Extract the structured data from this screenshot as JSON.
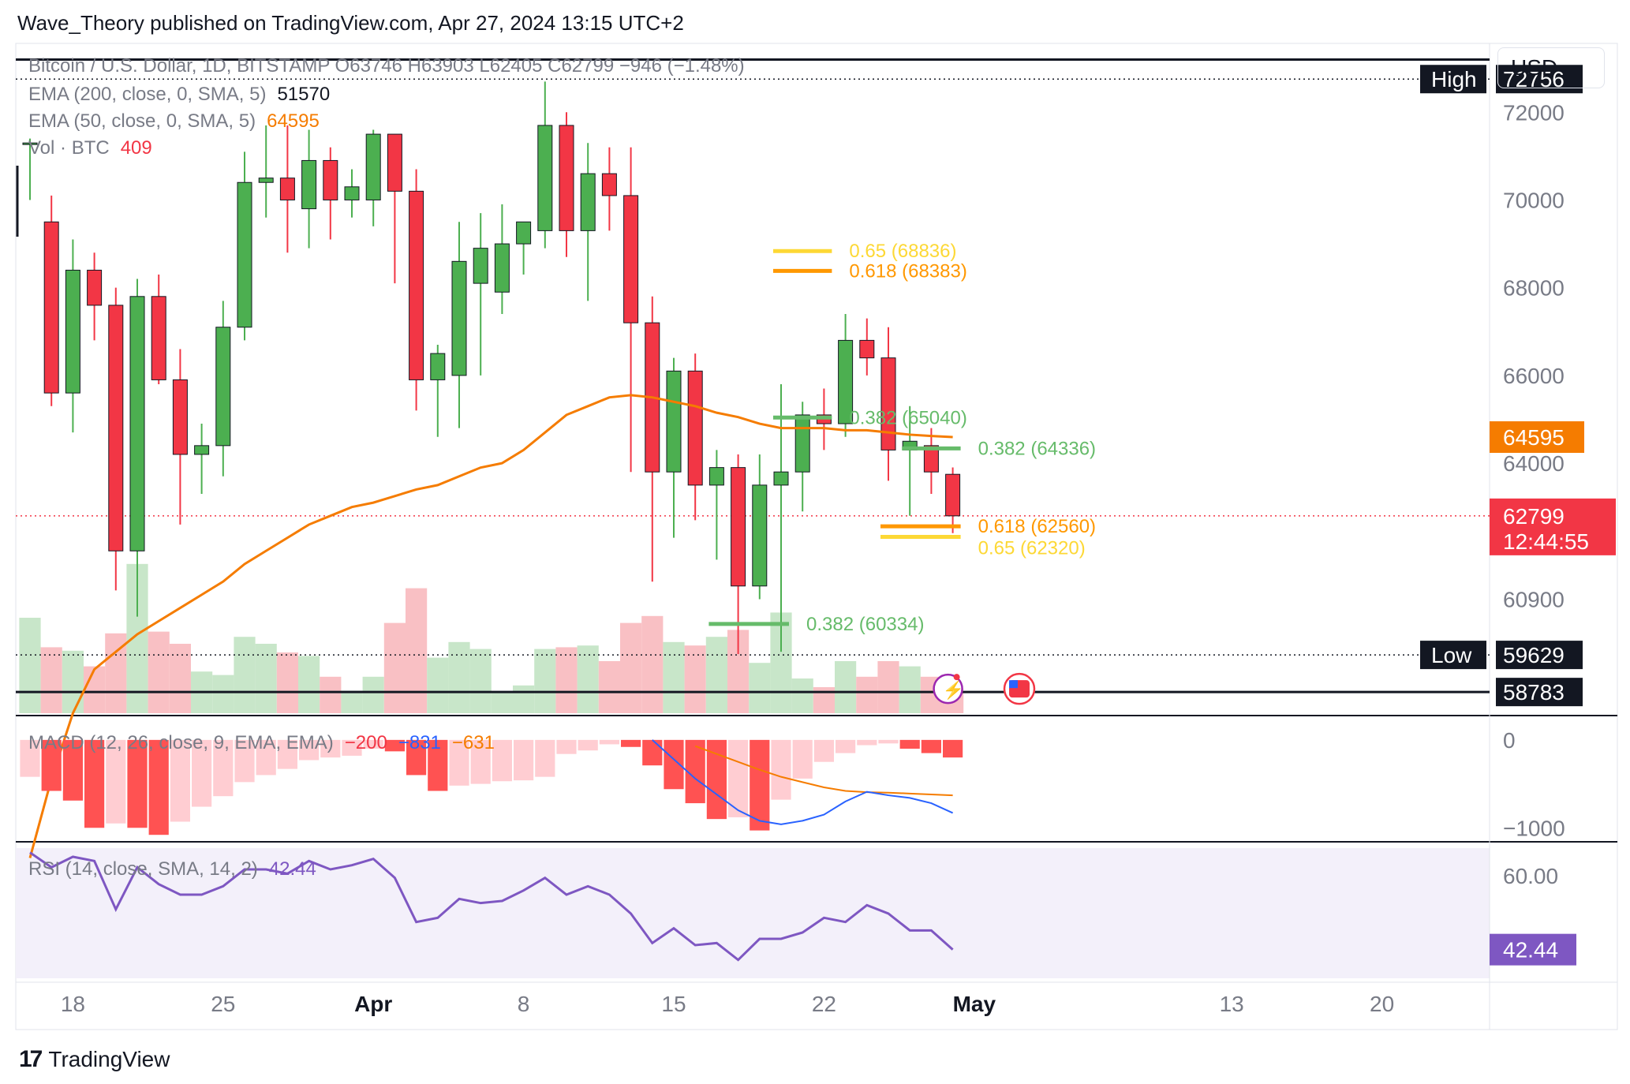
{
  "header": {
    "publish_text": "Wave_Theory published on TradingView.com, Apr 27, 2024 13:15 UTC+2"
  },
  "legend": {
    "symbol_line": "Bitcoin / U.S. Dollar, 1D, BITSTAMP  O63746  H63903  L62405  C62799  −946 (−1.48%)",
    "ema200_label": "EMA (200, close, 0, SMA, 5)",
    "ema200_value": "51570",
    "ema50_label": "EMA (50, close, 0, SMA, 5)",
    "ema50_value": "64595",
    "vol_label": "Vol · BTC",
    "vol_value": "409",
    "macd_label": "MACD (12, 26, close, 9, EMA, EMA)",
    "macd_hist": "−200",
    "macd_line": "−831",
    "macd_signal": "−631",
    "rsi_label": "RSI (14, close, SMA, 14, 2)",
    "rsi_value": "42.44"
  },
  "currency_button": "USD",
  "footer": {
    "brand": "TradingView"
  },
  "colors": {
    "up": "#4caf50",
    "down": "#f23645",
    "ema50": "#f57c00",
    "macd_line": "#2962ff",
    "rsi": "#7e57c2",
    "vol_up": "#c8e6c9",
    "vol_down": "#f9c0c4",
    "fib_yellow": "#fdd835",
    "fib_orange": "#ff9800",
    "fib_green": "#66bb6a"
  },
  "chart_data": {
    "type": "candlestick",
    "y_range": [
      58300,
      73300
    ],
    "y_ticks": [
      {
        "v": 72000,
        "label": "72000"
      },
      {
        "v": 70000,
        "label": "70000"
      },
      {
        "v": 68000,
        "label": "68000"
      },
      {
        "v": 66000,
        "label": "66000"
      },
      {
        "v": 64000,
        "label": "64000"
      },
      {
        "v": 60900,
        "label": "60900"
      }
    ],
    "x_ticks": [
      {
        "i": 2,
        "label": "18"
      },
      {
        "i": 9,
        "label": "25"
      },
      {
        "i": 16,
        "label": "Apr"
      },
      {
        "i": 23,
        "label": "8"
      },
      {
        "i": 30,
        "label": "15"
      },
      {
        "i": 37,
        "label": "22"
      },
      {
        "i": 44,
        "label": "May"
      },
      {
        "i": 56,
        "label": "13"
      },
      {
        "i": 63,
        "label": "20"
      }
    ],
    "candles": [
      {
        "o": 71300,
        "h": 71400,
        "l": 70000,
        "c": 71300
      },
      {
        "o": 69500,
        "h": 70100,
        "l": 65300,
        "c": 65600
      },
      {
        "o": 65600,
        "h": 69100,
        "l": 64700,
        "c": 68400
      },
      {
        "o": 68400,
        "h": 68800,
        "l": 66800,
        "c": 67600
      },
      {
        "o": 67600,
        "h": 68000,
        "l": 61100,
        "c": 62000
      },
      {
        "o": 62000,
        "h": 68200,
        "l": 60500,
        "c": 67800
      },
      {
        "o": 67800,
        "h": 68300,
        "l": 65800,
        "c": 65900
      },
      {
        "o": 65900,
        "h": 66600,
        "l": 62600,
        "c": 64200
      },
      {
        "o": 64200,
        "h": 64900,
        "l": 63300,
        "c": 64400
      },
      {
        "o": 64400,
        "h": 67700,
        "l": 63700,
        "c": 67100
      },
      {
        "o": 67100,
        "h": 71100,
        "l": 66800,
        "c": 70400
      },
      {
        "o": 70400,
        "h": 71700,
        "l": 69600,
        "c": 70500
      },
      {
        "o": 70500,
        "h": 71700,
        "l": 68800,
        "c": 70000
      },
      {
        "o": 69800,
        "h": 71600,
        "l": 68900,
        "c": 70900
      },
      {
        "o": 70900,
        "h": 71200,
        "l": 69100,
        "c": 70000
      },
      {
        "o": 70000,
        "h": 70700,
        "l": 69600,
        "c": 70300
      },
      {
        "o": 70000,
        "h": 71600,
        "l": 69400,
        "c": 71500
      },
      {
        "o": 71500,
        "h": 71500,
        "l": 68100,
        "c": 70200
      },
      {
        "o": 70200,
        "h": 70700,
        "l": 65200,
        "c": 65900
      },
      {
        "o": 65900,
        "h": 66700,
        "l": 64600,
        "c": 66500
      },
      {
        "o": 66000,
        "h": 69500,
        "l": 64800,
        "c": 68600
      },
      {
        "o": 68100,
        "h": 69700,
        "l": 66000,
        "c": 68900
      },
      {
        "o": 67900,
        "h": 69900,
        "l": 67400,
        "c": 69000
      },
      {
        "o": 69000,
        "h": 69500,
        "l": 68300,
        "c": 69500
      },
      {
        "o": 69300,
        "h": 72700,
        "l": 68900,
        "c": 71700
      },
      {
        "o": 71700,
        "h": 72000,
        "l": 68700,
        "c": 69300
      },
      {
        "o": 69300,
        "h": 71300,
        "l": 67700,
        "c": 70600
      },
      {
        "o": 70600,
        "h": 71200,
        "l": 69300,
        "c": 70100
      },
      {
        "o": 70100,
        "h": 71200,
        "l": 63800,
        "c": 67200
      },
      {
        "o": 67200,
        "h": 67800,
        "l": 61300,
        "c": 63800
      },
      {
        "o": 63800,
        "h": 66400,
        "l": 62300,
        "c": 66100
      },
      {
        "o": 66100,
        "h": 66500,
        "l": 62700,
        "c": 63500
      },
      {
        "o": 63500,
        "h": 64300,
        "l": 61800,
        "c": 63900
      },
      {
        "o": 63900,
        "h": 64200,
        "l": 59650,
        "c": 61200
      },
      {
        "o": 61200,
        "h": 64200,
        "l": 60900,
        "c": 63500
      },
      {
        "o": 63500,
        "h": 65800,
        "l": 59700,
        "c": 63800
      },
      {
        "o": 63800,
        "h": 65400,
        "l": 62900,
        "c": 65100
      },
      {
        "o": 65100,
        "h": 65700,
        "l": 64300,
        "c": 64900
      },
      {
        "o": 64900,
        "h": 67400,
        "l": 64600,
        "c": 66800
      },
      {
        "o": 66800,
        "h": 67300,
        "l": 66000,
        "c": 66400
      },
      {
        "o": 66400,
        "h": 67100,
        "l": 63600,
        "c": 64300
      },
      {
        "o": 64300,
        "h": 65300,
        "l": 62800,
        "c": 64500
      },
      {
        "o": 64400,
        "h": 64800,
        "l": 63300,
        "c": 63800
      },
      {
        "o": 63746,
        "h": 63903,
        "l": 62405,
        "c": 62799
      }
    ],
    "ema50": [
      55000,
      56800,
      58300,
      59300,
      59700,
      60100,
      60400,
      60700,
      61000,
      61300,
      61700,
      62000,
      62300,
      62600,
      62800,
      63000,
      63100,
      63250,
      63400,
      63500,
      63700,
      63900,
      64000,
      64300,
      64700,
      65100,
      65300,
      65500,
      65550,
      65500,
      65400,
      65300,
      65150,
      65050,
      64900,
      64800,
      64800,
      64800,
      64750,
      64750,
      64700,
      64650,
      64620,
      64595
    ],
    "volume_rel": [
      0.55,
      0.38,
      0.36,
      0.27,
      0.46,
      0.86,
      0.47,
      0.4,
      0.24,
      0.22,
      0.44,
      0.4,
      0.35,
      0.33,
      0.21,
      0.13,
      0.21,
      0.52,
      0.72,
      0.32,
      0.41,
      0.37,
      0.12,
      0.16,
      0.37,
      0.38,
      0.39,
      0.3,
      0.52,
      0.56,
      0.41,
      0.39,
      0.44,
      0.48,
      0.29,
      0.58,
      0.2,
      0.15,
      0.3,
      0.21,
      0.3,
      0.27,
      0.21,
      0.14
    ],
    "macd_hist": [
      -420,
      -580,
      -690,
      -1000,
      -950,
      -1000,
      -1080,
      -930,
      -760,
      -640,
      -480,
      -400,
      -330,
      -230,
      -200,
      -180,
      -100,
      -130,
      -400,
      -580,
      -520,
      -500,
      -470,
      -460,
      -420,
      -160,
      -120,
      -50,
      -80,
      -290,
      -560,
      -720,
      -900,
      -880,
      -1030,
      -680,
      -440,
      -250,
      -150,
      -60,
      -40,
      -100,
      -150,
      -200
    ],
    "macd_range": [
      -1150,
      250
    ],
    "macd_ticks": [
      {
        "v": 0,
        "label": "0"
      },
      {
        "v": -1000,
        "label": "−1000"
      }
    ],
    "macd_line": [
      [
        29,
        0
      ],
      [
        30,
        -220
      ],
      [
        31,
        -440
      ],
      [
        32,
        -620
      ],
      [
        33,
        -800
      ],
      [
        34,
        -920
      ],
      [
        35,
        -960
      ],
      [
        36,
        -920
      ],
      [
        37,
        -850
      ],
      [
        38,
        -700
      ],
      [
        39,
        -590
      ],
      [
        40,
        -630
      ],
      [
        41,
        -660
      ],
      [
        42,
        -720
      ],
      [
        43,
        -831
      ]
    ],
    "macd_signal": [
      [
        31,
        -70
      ],
      [
        32,
        -160
      ],
      [
        33,
        -250
      ],
      [
        34,
        -340
      ],
      [
        35,
        -420
      ],
      [
        36,
        -480
      ],
      [
        37,
        -540
      ],
      [
        38,
        -580
      ],
      [
        39,
        -595
      ],
      [
        40,
        -600
      ],
      [
        41,
        -610
      ],
      [
        42,
        -620
      ],
      [
        43,
        -631
      ]
    ],
    "rsi": [
      65.5,
      62.0,
      64.5,
      63.5,
      52.0,
      62.0,
      58.0,
      55.5,
      55.5,
      57.5,
      61.5,
      61.5,
      60.5,
      63.5,
      61.5,
      62.5,
      64.0,
      59.5,
      49.0,
      50.0,
      54.5,
      53.5,
      54.0,
      56.5,
      59.5,
      55.5,
      57.5,
      55.5,
      51.0,
      44.0,
      47.5,
      43.5,
      44.0,
      40.0,
      45.0,
      45.0,
      46.5,
      50.0,
      49.0,
      53.0,
      51.0,
      47.0,
      47.0,
      42.44
    ],
    "rsi_range": [
      36,
      66
    ],
    "rsi_ticks": [
      {
        "v": 60,
        "label": "60.00"
      }
    ],
    "fib_levels": [
      {
        "label": "0.65 (68836)",
        "value": 68836,
        "from": 35,
        "to": 37,
        "color": "fib_yellow"
      },
      {
        "label": "0.618 (68383)",
        "value": 68383,
        "from": 35,
        "to": 37,
        "color": "fib_orange"
      },
      {
        "label": "0.382 (65040)",
        "value": 65040,
        "from": 35,
        "to": 37,
        "color": "fib_green"
      },
      {
        "label": "0.382 (64336)",
        "value": 64336,
        "from": 41,
        "to": 43,
        "color": "fib_green"
      },
      {
        "label": "0.618 (62560)",
        "value": 62560,
        "from": 40,
        "to": 43,
        "color": "fib_orange"
      },
      {
        "label": "0.65 (62320)",
        "value": 62320,
        "from": 40,
        "to": 43,
        "color": "fib_yellow"
      },
      {
        "label": "0.382 (60334)",
        "value": 60334,
        "from": 32,
        "to": 35,
        "color": "fib_green"
      }
    ],
    "price_badges": {
      "high_label": "High",
      "high_value": "72756",
      "low_label": "Low",
      "low_value": "59629",
      "ema50_value": "64595",
      "last_value": "62799",
      "countdown": "12:44:55",
      "bottom_value": "58783"
    },
    "levels": {
      "high": 72756,
      "low": 59629,
      "last": 62799,
      "bottom": 58783,
      "top_line": 73200
    }
  }
}
